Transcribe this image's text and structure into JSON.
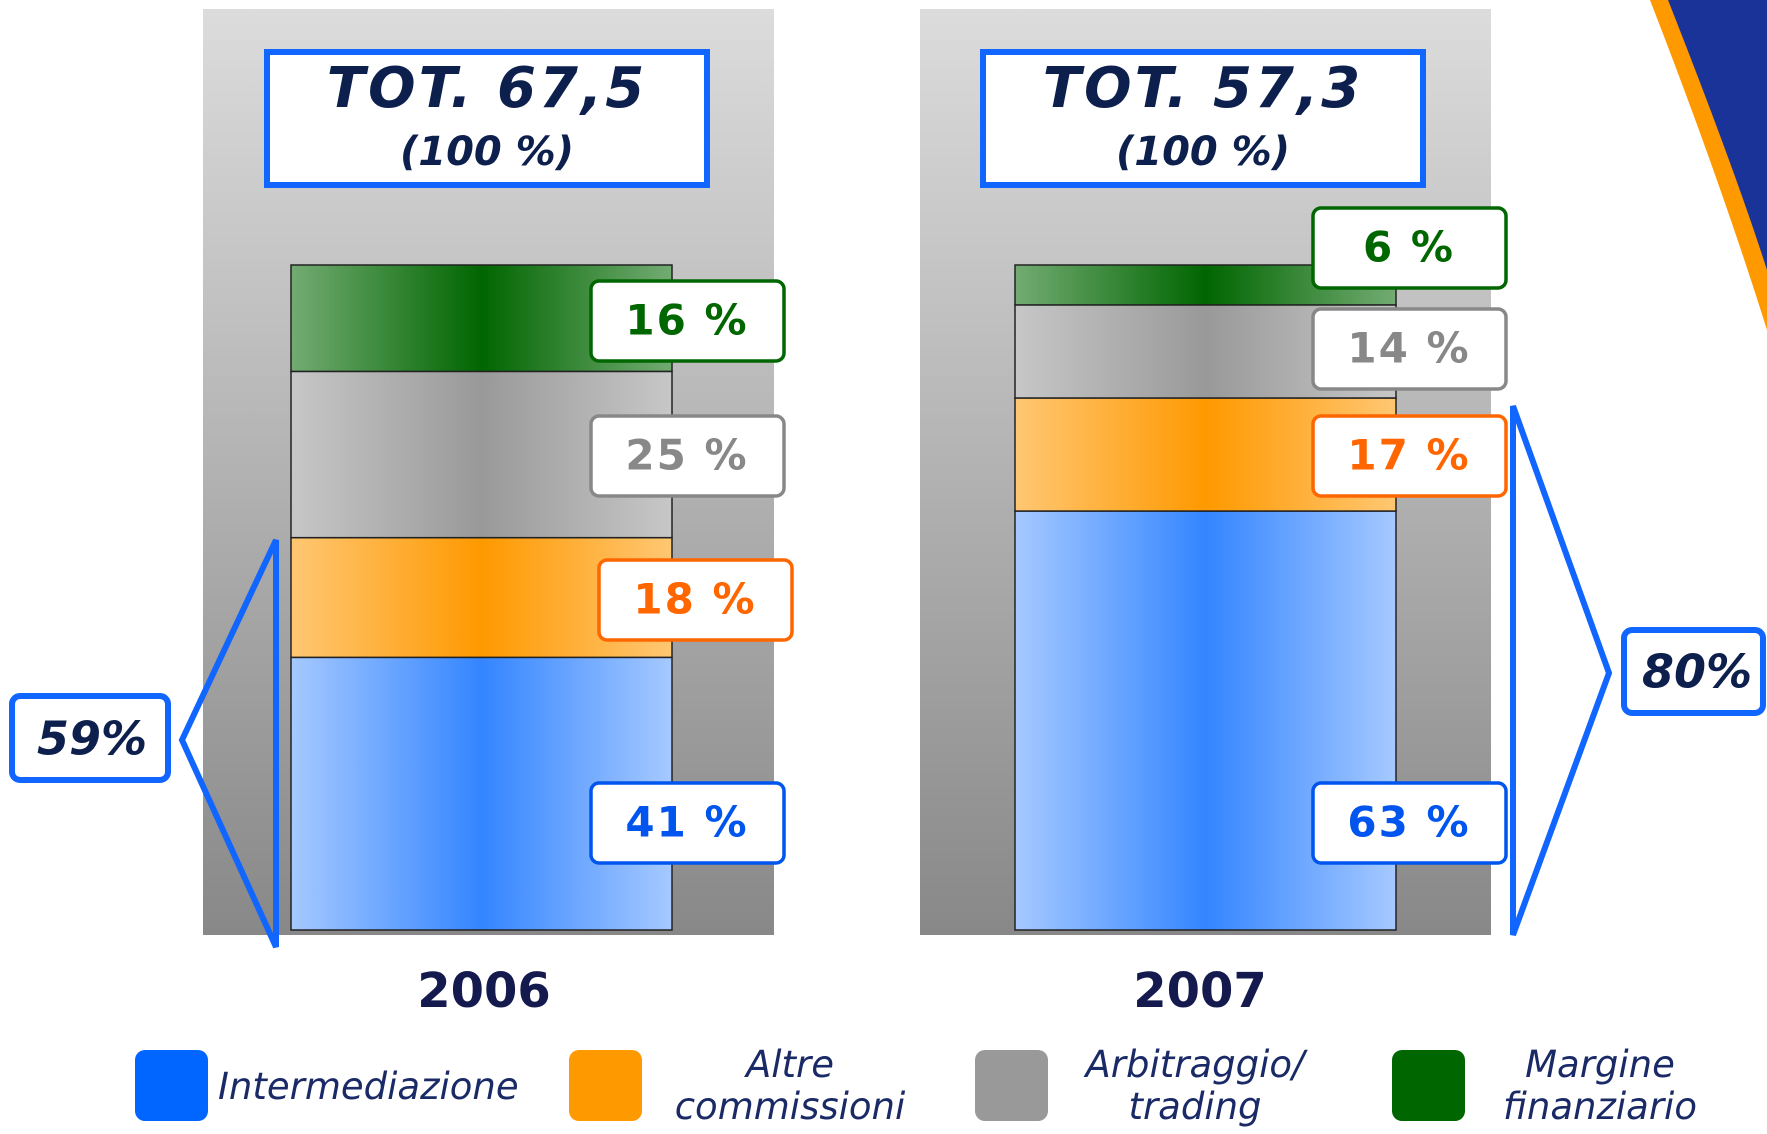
{
  "chart_data": {
    "type": "stacked_bar",
    "categories": [
      "2006",
      "2007"
    ],
    "series": [
      {
        "name": "Intermediazione",
        "color": "#0066ff",
        "label_color": "#0055ee",
        "values": [
          41,
          63
        ],
        "value_labels": [
          "41 %",
          "63 %"
        ]
      },
      {
        "name": "Altre commissioni",
        "color": "#ff9900",
        "label_color": "#ff6600",
        "values": [
          18,
          17
        ],
        "value_labels": [
          "18 %",
          "17 %"
        ]
      },
      {
        "name": "Arbitraggio/ trading",
        "color": "#999999",
        "label_color": "#888888",
        "values": [
          25,
          14
        ],
        "value_labels": [
          "25 %",
          "14 %"
        ]
      },
      {
        "name": "Margine finanziario",
        "color": "#006600",
        "label_color": "#006600",
        "values": [
          16,
          6
        ],
        "value_labels": [
          "16 %",
          "6 %"
        ]
      }
    ],
    "totals": [
      {
        "value": 67.5,
        "label": "TOT. 67,5",
        "share": "(100 %)"
      },
      {
        "value": 57.3,
        "label": "TOT. 57,3",
        "share": "(100 %)"
      }
    ],
    "brackets": [
      {
        "value": 59,
        "label": "59%"
      },
      {
        "value": 80,
        "label": "80%"
      }
    ]
  }
}
